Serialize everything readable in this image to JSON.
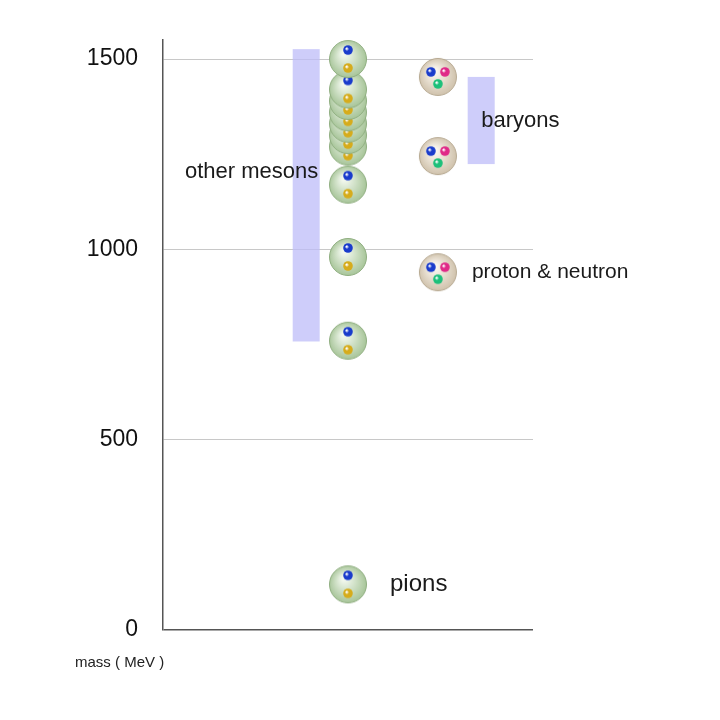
{
  "chart_data": {
    "type": "scatter",
    "y_label": "mass ( MeV )",
    "ylim": [
      0,
      1550
    ],
    "yticks": [
      0,
      500,
      1000,
      1500
    ],
    "grid": true,
    "tick_labels": "y",
    "series": [
      {
        "name": "pions",
        "marker": "meson",
        "values": [
          120
        ]
      },
      {
        "name": "other mesons",
        "marker": "meson",
        "values": [
          760,
          980,
          1170,
          1270,
          1300,
          1330,
          1360,
          1390,
          1420,
          1500
        ],
        "range": [
          758,
          1526
        ]
      },
      {
        "name": "proton & neutron",
        "marker": "baryon",
        "values": [
          940
        ]
      },
      {
        "name": "baryons",
        "marker": "baryon",
        "values": [
          1245,
          1453
        ],
        "range": [
          1224,
          1453
        ]
      }
    ]
  }
}
